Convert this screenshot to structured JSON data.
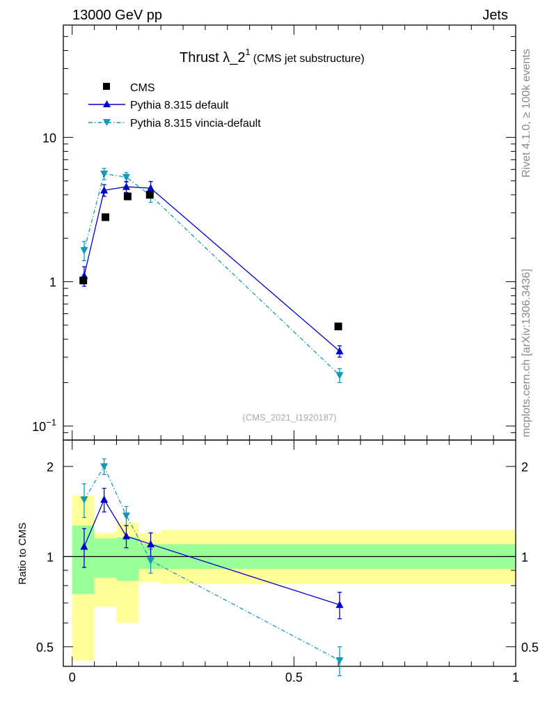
{
  "header": {
    "left": "13000 GeV pp",
    "right": "Jets"
  },
  "side_labels": {
    "top": "Rivet 4.1.0, ≥ 100k events",
    "bottom": "mcplots.cern.ch [arXiv:1306.3436]"
  },
  "chart_data": {
    "type": "line",
    "title": {
      "main": "Thrust λ_2",
      "sup": "1",
      "sub": "(CMS jet substructure)"
    },
    "watermark": "(CMS_2021_I1920187)",
    "colors": {
      "data": "#000000",
      "pythia_default": "#0000cc",
      "pythia_vincia": "#1199bb",
      "band_inner": "#99ff99",
      "band_outer": "#ffff99"
    },
    "main_panel": {
      "yscale": "log",
      "ylim": [
        0.08,
        60
      ],
      "yticks": [
        {
          "value": 0.1,
          "base": "10",
          "exp": "−1"
        },
        {
          "value": 1,
          "label": "1"
        },
        {
          "value": 10,
          "label": "10"
        }
      ]
    },
    "ratio_panel": {
      "ylabel": "Ratio to CMS",
      "ylim": [
        0.43,
        2.45
      ],
      "yticks": [
        {
          "value": 0.5,
          "label": "0.5"
        },
        {
          "value": 1,
          "label": "1"
        },
        {
          "value": 2,
          "label": "2"
        }
      ]
    },
    "x_axis": {
      "xlim": [
        -0.02,
        1.0
      ],
      "ticks": [
        {
          "value": 0,
          "label": "0"
        },
        {
          "value": 0.5,
          "label": "0.5"
        },
        {
          "value": 1,
          "label": "1"
        }
      ]
    },
    "legend": {
      "position": "top-left",
      "entries": [
        "CMS",
        "Pythia 8.315 default",
        "Pythia 8.315 vincia-default"
      ]
    },
    "bins": [
      {
        "lo": 0.0,
        "hi": 0.05
      },
      {
        "lo": 0.05,
        "hi": 0.1
      },
      {
        "lo": 0.1,
        "hi": 0.15
      },
      {
        "lo": 0.15,
        "hi": 0.2
      },
      {
        "lo": 0.2,
        "hi": 1.0
      }
    ],
    "series": [
      {
        "name": "CMS",
        "style": "square",
        "x": [
          0.025,
          0.075,
          0.125,
          0.175,
          0.6
        ],
        "y": [
          1.02,
          2.8,
          3.9,
          4.0,
          0.49
        ]
      },
      {
        "name": "Pythia 8.315 default",
        "style": "solid-triangle-up",
        "x": [
          0.027,
          0.072,
          0.122,
          0.177,
          0.603
        ],
        "y": [
          1.1,
          4.3,
          4.55,
          4.45,
          0.33
        ],
        "yerr": [
          0.17,
          0.4,
          0.4,
          0.5,
          0.03
        ],
        "ratio": [
          1.08,
          1.55,
          1.17,
          1.1,
          0.69
        ],
        "ratio_err": [
          0.16,
          0.14,
          0.1,
          0.1,
          0.07
        ]
      },
      {
        "name": "Pythia 8.315 vincia-default",
        "style": "dashdot-triangle-down",
        "x": [
          0.027,
          0.072,
          0.122,
          0.177,
          0.603
        ],
        "y": [
          1.65,
          5.6,
          5.3,
          3.95,
          0.225
        ],
        "yerr": [
          0.25,
          0.5,
          0.4,
          0.4,
          0.025
        ],
        "ratio": [
          1.55,
          2.0,
          1.37,
          0.97,
          0.45
        ],
        "ratio_err": [
          0.2,
          0.12,
          0.1,
          0.09,
          0.05
        ]
      }
    ],
    "ratio_bands": {
      "inner": [
        [
          0.75,
          1.27
        ],
        [
          0.85,
          1.15
        ],
        [
          0.83,
          1.16
        ],
        [
          0.91,
          1.1
        ],
        [
          0.91,
          1.1
        ]
      ],
      "outer": [
        [
          0.45,
          1.6
        ],
        [
          0.68,
          1.2
        ],
        [
          0.6,
          1.3
        ],
        [
          0.82,
          1.2
        ],
        [
          0.81,
          1.23
        ]
      ]
    }
  }
}
